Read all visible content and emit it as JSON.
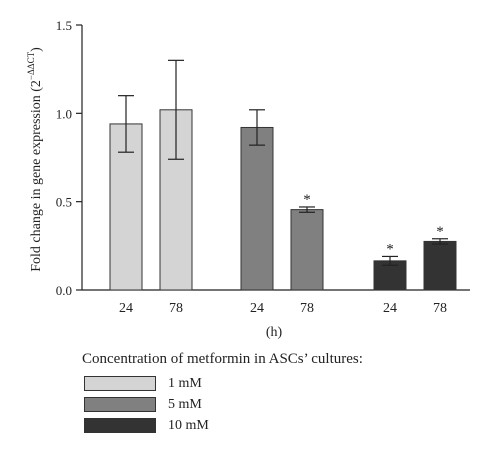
{
  "chart_data": {
    "type": "bar",
    "ylabel_text": "Fold change in gene expression (2",
    "ylabel_sup": "−ΔΔCT",
    "ylabel_close": ")",
    "xlabel": "(h)",
    "ylim": [
      0,
      1.5
    ],
    "yticks": [
      0.0,
      0.5,
      1.0,
      1.5
    ],
    "ytick_labels": [
      "0.0",
      "0.5",
      "1.0",
      "1.5"
    ],
    "groups": [
      {
        "name": "1 mM",
        "color": "#d4d4d4",
        "bars": [
          {
            "label": "24",
            "value": 0.94,
            "err": 0.16,
            "significant": false
          },
          {
            "label": "78",
            "value": 1.02,
            "err": 0.28,
            "significant": false
          }
        ]
      },
      {
        "name": "5 mM",
        "color": "#808080",
        "bars": [
          {
            "label": "24",
            "value": 0.92,
            "err": 0.1,
            "significant": false
          },
          {
            "label": "78",
            "value": 0.455,
            "err": 0.015,
            "significant": true
          }
        ]
      },
      {
        "name": "10 mM",
        "color": "#333333",
        "bars": [
          {
            "label": "24",
            "value": 0.165,
            "err": 0.025,
            "significant": true
          },
          {
            "label": "78",
            "value": 0.275,
            "err": 0.015,
            "significant": true
          }
        ]
      }
    ],
    "significance_marker": "*",
    "legend": {
      "title": "Concentration of metformin in ASCs’ cultures:",
      "placement": "bottom-left"
    }
  }
}
